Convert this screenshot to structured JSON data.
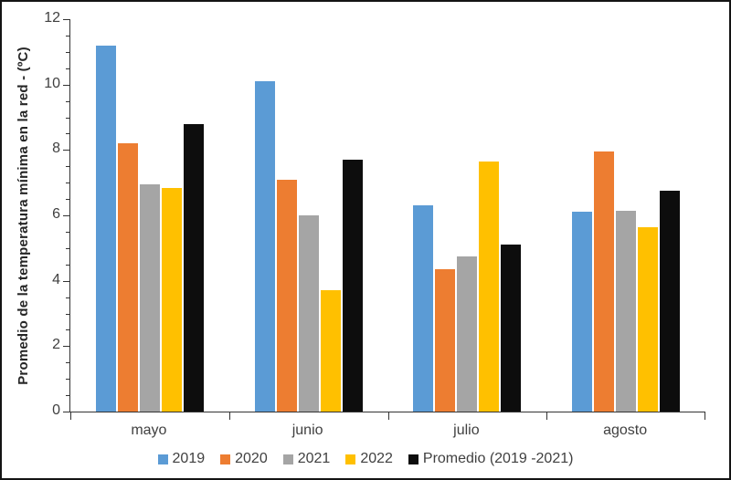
{
  "figure": {
    "background": "#ffffff",
    "border_color": "#141414",
    "axis_color": "#333333",
    "tick_label_color": "#404040",
    "axis_title_color": "#262626"
  },
  "chart_data": {
    "type": "bar",
    "title": "",
    "xlabel": "",
    "ylabel": "Promedio de la temperatura mínima en la red - (ºC)",
    "categories": [
      "mayo",
      "junio",
      "julio",
      "agosto"
    ],
    "series": [
      {
        "name": "2019",
        "color": "#5B9BD5",
        "values": [
          11.2,
          10.1,
          6.3,
          6.1
        ]
      },
      {
        "name": "2020",
        "color": "#ED7D31",
        "values": [
          8.2,
          7.1,
          4.35,
          7.95
        ]
      },
      {
        "name": "2021",
        "color": "#A5A5A5",
        "values": [
          6.95,
          6.0,
          4.75,
          6.15
        ]
      },
      {
        "name": "2022",
        "color": "#FFC000",
        "values": [
          6.85,
          3.7,
          7.65,
          5.65
        ]
      },
      {
        "name": "Promedio (2019 -2021)",
        "color": "#0D0D0D",
        "values": [
          8.8,
          7.7,
          5.1,
          6.75
        ]
      }
    ],
    "ylim": [
      0,
      12
    ],
    "y_major_ticks": [
      "0",
      "2",
      "4",
      "6",
      "8",
      "10",
      "12"
    ],
    "y_major_step": 2,
    "y_minor_step": 0.5,
    "grid": false,
    "legend_position": "bottom"
  }
}
